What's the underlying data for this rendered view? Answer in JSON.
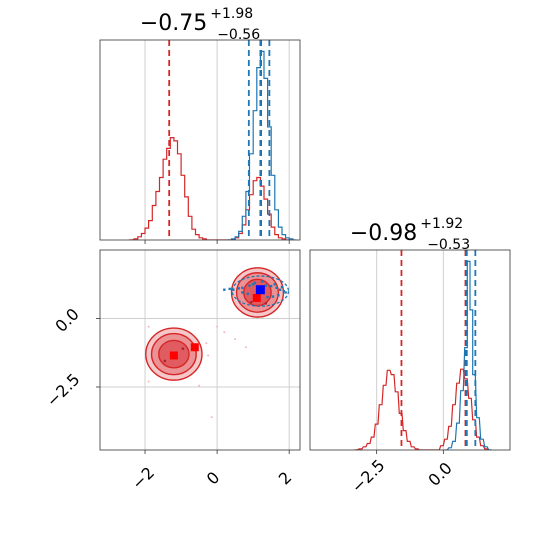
{
  "chart_data": [
    {
      "type": "histogram",
      "panel": "top-left",
      "title_main": "−0.75",
      "title_sup": "+1.98",
      "title_sub": "−0.56",
      "xlim": [
        -3.25,
        2.3
      ],
      "x_grid": [
        -2,
        0,
        2
      ],
      "grid": true,
      "series": [
        {
          "color": "#d62728",
          "bins": [
            [
              -2.4,
              0
            ],
            [
              -2.25,
              1
            ],
            [
              -2.15,
              3
            ],
            [
              -2.05,
              6
            ],
            [
              -1.95,
              11
            ],
            [
              -1.85,
              18
            ],
            [
              -1.75,
              32
            ],
            [
              -1.65,
              45
            ],
            [
              -1.55,
              58
            ],
            [
              -1.45,
              75
            ],
            [
              -1.35,
              85
            ],
            [
              -1.25,
              95
            ],
            [
              -1.15,
              92
            ],
            [
              -1.05,
              80
            ],
            [
              -0.95,
              60
            ],
            [
              -0.85,
              40
            ],
            [
              -0.75,
              22
            ],
            [
              -0.65,
              10
            ],
            [
              -0.55,
              5
            ],
            [
              -0.45,
              2
            ],
            [
              -0.35,
              1
            ],
            [
              -0.25,
              0
            ],
            [
              0.45,
              0
            ],
            [
              0.55,
              2
            ],
            [
              0.65,
              6
            ],
            [
              0.75,
              14
            ],
            [
              0.85,
              28
            ],
            [
              0.95,
              42
            ],
            [
              1.05,
              55
            ],
            [
              1.15,
              58
            ],
            [
              1.25,
              50
            ],
            [
              1.35,
              38
            ],
            [
              1.45,
              24
            ],
            [
              1.55,
              12
            ],
            [
              1.65,
              5
            ],
            [
              1.75,
              2
            ],
            [
              1.85,
              1
            ],
            [
              1.95,
              0
            ]
          ],
          "quantile_lines": [
            -1.33,
            1.22
          ]
        },
        {
          "color": "#1f77b4",
          "bins": [
            [
              0.35,
              0
            ],
            [
              0.45,
              1
            ],
            [
              0.55,
              3
            ],
            [
              0.65,
              8
            ],
            [
              0.75,
              22
            ],
            [
              0.85,
              45
            ],
            [
              0.95,
              80
            ],
            [
              1.05,
              120
            ],
            [
              1.15,
              160
            ],
            [
              1.25,
              175
            ],
            [
              1.35,
              150
            ],
            [
              1.45,
              105
            ],
            [
              1.55,
              60
            ],
            [
              1.65,
              28
            ],
            [
              1.75,
              12
            ],
            [
              1.85,
              5
            ],
            [
              1.95,
              2
            ],
            [
              2.05,
              1
            ],
            [
              2.15,
              0
            ]
          ],
          "quantile_lines": [
            0.88,
            1.2,
            1.45
          ]
        }
      ]
    },
    {
      "type": "contour",
      "panel": "bottom-left",
      "xlim": [
        -3.25,
        2.3
      ],
      "ylim": [
        -4.8,
        2.5
      ],
      "x_grid": [
        -2,
        0,
        2
      ],
      "y_grid": [
        0,
        -2.5
      ],
      "x_ticks": [
        "−2",
        "0",
        "2"
      ],
      "y_ticks": [
        "0.0",
        "−2.5"
      ],
      "red_modes": [
        {
          "cx": -1.2,
          "cy": -1.3,
          "rx": [
            0.78,
            0.62,
            0.42
          ],
          "ry": [
            0.95,
            0.75,
            0.5
          ]
        },
        {
          "cx": 1.12,
          "cy": 0.95,
          "rx": [
            0.72,
            0.58,
            0.38
          ],
          "ry": [
            0.9,
            0.72,
            0.48
          ]
        }
      ],
      "red_markers": [
        {
          "x": -1.2,
          "y": -1.35
        },
        {
          "x": -0.62,
          "y": -1.05
        },
        {
          "x": 1.1,
          "y": 0.75
        }
      ],
      "blue_marker": {
        "x": 1.2,
        "y": 1.05
      },
      "blue_contour": {
        "cx": 1.2,
        "cy": 1.0,
        "rx": 0.78,
        "ry": 0.55
      },
      "blue_scatter": [
        [
          0.2,
          1.05
        ],
        [
          0.35,
          1.08
        ],
        [
          0.45,
          1.05
        ],
        [
          0.6,
          1.1
        ],
        [
          0.7,
          1.12
        ],
        [
          0.9,
          1.2
        ],
        [
          1.0,
          1.25
        ],
        [
          1.35,
          1.2
        ],
        [
          1.5,
          1.18
        ],
        [
          1.65,
          1.12
        ],
        [
          1.75,
          1.05
        ],
        [
          1.85,
          1.0
        ],
        [
          1.9,
          0.95
        ],
        [
          1.7,
          0.85
        ],
        [
          1.55,
          0.8
        ],
        [
          1.4,
          0.78
        ],
        [
          0.85,
          0.9
        ],
        [
          0.7,
          0.95
        ],
        [
          1.05,
          1.3
        ],
        [
          1.25,
          1.35
        ],
        [
          1.6,
          1.25
        ],
        [
          1.8,
          1.15
        ]
      ],
      "pink_scatter": [
        [
          -1.9,
          -0.3
        ],
        [
          -1.4,
          -0.5
        ],
        [
          -0.3,
          -0.9
        ],
        [
          0.2,
          -0.5
        ],
        [
          0.5,
          -0.75
        ],
        [
          -0.25,
          -1.35
        ],
        [
          0.0,
          -0.3
        ],
        [
          -0.6,
          -1.9
        ],
        [
          -1.1,
          -2.2
        ],
        [
          -0.5,
          -2.45
        ],
        [
          -1.6,
          -1.8
        ],
        [
          0.8,
          -1.05
        ],
        [
          -1.9,
          -2.3
        ],
        [
          -0.15,
          -3.6
        ],
        [
          -1.7,
          -2.0
        ]
      ],
      "dark_red_points": [
        [
          -1.45,
          -1.55
        ],
        [
          -0.95,
          -1.1
        ],
        [
          1.35,
          0.55
        ],
        [
          0.95,
          0.6
        ]
      ]
    },
    {
      "type": "histogram",
      "panel": "bottom-right",
      "title_main": "−0.98",
      "title_sup": "+1.92",
      "title_sub": "−0.53",
      "xlim": [
        -5.0,
        2.5
      ],
      "x_grid": [
        -2.5,
        0.0
      ],
      "x_ticks": [
        "−2.5",
        "0.0"
      ],
      "grid": true,
      "series": [
        {
          "color": "#d62728",
          "bins": [
            [
              -3.3,
              0
            ],
            [
              -3.1,
              1
            ],
            [
              -2.95,
              3
            ],
            [
              -2.8,
              6
            ],
            [
              -2.65,
              12
            ],
            [
              -2.5,
              24
            ],
            [
              -2.35,
              42
            ],
            [
              -2.2,
              60
            ],
            [
              -2.05,
              74
            ],
            [
              -1.9,
              70
            ],
            [
              -1.75,
              54
            ],
            [
              -1.6,
              34
            ],
            [
              -1.45,
              18
            ],
            [
              -1.3,
              8
            ],
            [
              -1.15,
              3
            ],
            [
              -1.0,
              1
            ],
            [
              -0.85,
              0
            ],
            [
              -0.2,
              0
            ],
            [
              -0.05,
              4
            ],
            [
              0.1,
              10
            ],
            [
              0.25,
              22
            ],
            [
              0.4,
              42
            ],
            [
              0.55,
              62
            ],
            [
              0.7,
              75
            ],
            [
              0.85,
              66
            ],
            [
              1.0,
              48
            ],
            [
              1.15,
              28
            ],
            [
              1.3,
              12
            ],
            [
              1.45,
              4
            ],
            [
              1.6,
              1
            ],
            [
              1.75,
              0
            ]
          ],
          "quantile_lines": [
            -1.57,
            0.83
          ]
        },
        {
          "color": "#1f77b4",
          "bins": [
            [
              0.1,
              0
            ],
            [
              0.25,
              2
            ],
            [
              0.4,
              8
            ],
            [
              0.55,
              25
            ],
            [
              0.7,
              55
            ],
            [
              0.85,
              95
            ],
            [
              0.95,
              175
            ],
            [
              1.05,
              130
            ],
            [
              1.15,
              70
            ],
            [
              1.3,
              30
            ],
            [
              1.45,
              10
            ],
            [
              1.6,
              3
            ],
            [
              1.75,
              0
            ]
          ],
          "quantile_lines": [
            0.88,
            1.2
          ]
        }
      ]
    }
  ]
}
